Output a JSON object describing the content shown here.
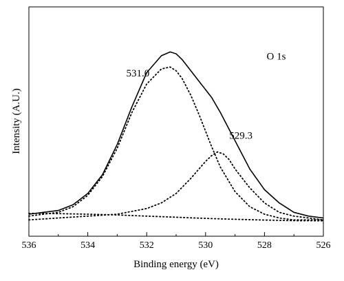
{
  "chart_data": {
    "type": "line",
    "title": "",
    "xlabel": "Binding energy (eV)",
    "ylabel": "Intensity (A.U.)",
    "xlim": [
      536,
      526
    ],
    "x_reversed": true,
    "ylim": [
      0,
      1
    ],
    "y_tick_labels_shown": false,
    "grid": false,
    "legend": "none",
    "x_ticks": [
      536,
      534,
      532,
      530,
      528,
      526
    ],
    "x_tick_labels": [
      "536",
      "534",
      "532",
      "530",
      "528",
      "526"
    ],
    "annotations": [
      {
        "text": "O 1s",
        "x": 527.6,
        "y": 0.86
      },
      {
        "text": "531.0",
        "x": 532.3,
        "y": 0.77
      },
      {
        "text": "529.3",
        "x": 528.8,
        "y": 0.44
      }
    ],
    "series": [
      {
        "style": "solid",
        "color": "#000000",
        "x": [
          536.0,
          535.5,
          535.0,
          534.5,
          534.0,
          533.5,
          533.0,
          532.5,
          532.0,
          531.5,
          531.2,
          531.0,
          530.8,
          530.5,
          530.2,
          530.0,
          529.8,
          529.5,
          529.0,
          528.5,
          528.0,
          527.5,
          527.0,
          526.5,
          526.0
        ],
        "y": [
          0.04,
          0.05,
          0.06,
          0.09,
          0.15,
          0.25,
          0.41,
          0.61,
          0.79,
          0.88,
          0.9,
          0.89,
          0.86,
          0.8,
          0.74,
          0.7,
          0.66,
          0.58,
          0.43,
          0.28,
          0.17,
          0.1,
          0.05,
          0.03,
          0.02
        ]
      },
      {
        "style": "dotted",
        "color": "#000000",
        "x": [
          536.0,
          535.5,
          535.0,
          534.5,
          534.0,
          533.5,
          533.0,
          532.5,
          532.0,
          531.5,
          531.2,
          531.0,
          530.8,
          530.5,
          530.2,
          530.0,
          529.8,
          529.5,
          529.0,
          528.5,
          528.0,
          527.5,
          527.0,
          526.5,
          526.0
        ],
        "y": [
          0.03,
          0.04,
          0.05,
          0.08,
          0.14,
          0.24,
          0.39,
          0.58,
          0.73,
          0.81,
          0.82,
          0.8,
          0.76,
          0.67,
          0.56,
          0.48,
          0.4,
          0.29,
          0.16,
          0.08,
          0.04,
          0.02,
          0.01,
          0.01,
          0.01
        ]
      },
      {
        "style": "dotted",
        "color": "#000000",
        "x": [
          536.0,
          535.0,
          534.0,
          533.0,
          532.0,
          531.5,
          531.0,
          530.5,
          530.0,
          529.8,
          529.6,
          529.4,
          529.2,
          529.0,
          528.5,
          528.0,
          527.5,
          527.0,
          526.5,
          526.0
        ],
        "y": [
          0.01,
          0.02,
          0.03,
          0.04,
          0.07,
          0.1,
          0.15,
          0.23,
          0.32,
          0.35,
          0.37,
          0.36,
          0.33,
          0.28,
          0.18,
          0.1,
          0.05,
          0.03,
          0.02,
          0.01
        ]
      },
      {
        "style": "dotted",
        "color": "#000000",
        "x": [
          536.0,
          535.0,
          534.0,
          533.0,
          532.0,
          531.0,
          530.0,
          529.0,
          528.0,
          527.0,
          526.0
        ],
        "y": [
          0.045,
          0.043,
          0.04,
          0.036,
          0.03,
          0.024,
          0.018,
          0.013,
          0.009,
          0.006,
          0.005
        ]
      }
    ]
  }
}
